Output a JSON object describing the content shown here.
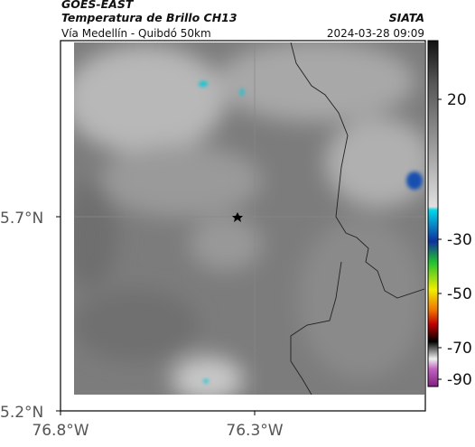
{
  "header": {
    "source": "GOES-EAST",
    "title": "Temperatura de Brillo CH13",
    "subtitle": "Vía Medellín - Quibdó 50km",
    "brand": "SIATA",
    "date": "2024-03-28 09:09"
  },
  "axes": {
    "lat_labels": [
      "5.7°N",
      "5.2°N"
    ],
    "lon_labels": [
      "76.8°W",
      "76.3°W"
    ]
  },
  "colorbar": {
    "ticks": [
      20,
      -30,
      -50,
      -70,
      -90
    ]
  }
}
